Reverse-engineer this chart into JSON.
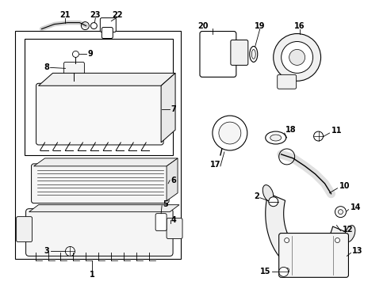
{
  "bg_color": "#ffffff",
  "line_color": "#000000",
  "text_color": "#000000",
  "fig_width": 4.89,
  "fig_height": 3.6,
  "dpi": 100
}
